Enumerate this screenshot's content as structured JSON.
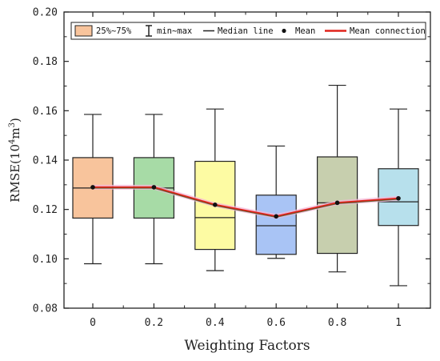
{
  "chart_data": {
    "type": "box",
    "xlabel": "Weighting Factors",
    "ylabel_main": "RMSE(10",
    "ylabel_sup": "4",
    "ylabel_unit": "m",
    "ylabel_sup2": "3",
    "ylabel_end": ")",
    "ylim": [
      0.08,
      0.2
    ],
    "yticks": [
      "0.08",
      "0.10",
      "0.12",
      "0.14",
      "0.16",
      "0.18",
      "0.20"
    ],
    "categories": [
      "0",
      "0.2",
      "0.4",
      "0.6",
      "0.8",
      "1"
    ],
    "boxes": [
      {
        "min": 0.098,
        "q1": 0.1165,
        "median": 0.1287,
        "q3": 0.141,
        "max": 0.1585,
        "mean": 0.129,
        "color": "#f8c49c"
      },
      {
        "min": 0.098,
        "q1": 0.1165,
        "median": 0.1287,
        "q3": 0.141,
        "max": 0.1585,
        "mean": 0.129,
        "color": "#a7dba6"
      },
      {
        "min": 0.0952,
        "q1": 0.1038,
        "median": 0.1167,
        "q3": 0.1395,
        "max": 0.1607,
        "mean": 0.1219,
        "color": "#fdfba3"
      },
      {
        "min": 0.1002,
        "q1": 0.1018,
        "median": 0.1134,
        "q3": 0.1258,
        "max": 0.1457,
        "mean": 0.1172,
        "color": "#a9c4f5"
      },
      {
        "min": 0.0947,
        "q1": 0.1022,
        "median": 0.1227,
        "q3": 0.1413,
        "max": 0.1703,
        "mean": 0.1227,
        "color": "#c7cfae"
      },
      {
        "min": 0.0891,
        "q1": 0.1135,
        "median": 0.1231,
        "q3": 0.1365,
        "max": 0.1607,
        "mean": 0.1245,
        "color": "#b7e0ec"
      }
    ],
    "legend": {
      "box": "25%~75%",
      "whisker": "min~max",
      "median": "Median line",
      "mean": "Mean",
      "mean_line": "Mean connection",
      "placement": "top"
    },
    "colors": {
      "mean_line": "#e0231c",
      "mean_band": "#f4b8d8",
      "legend_box": "#f8c49c"
    }
  }
}
